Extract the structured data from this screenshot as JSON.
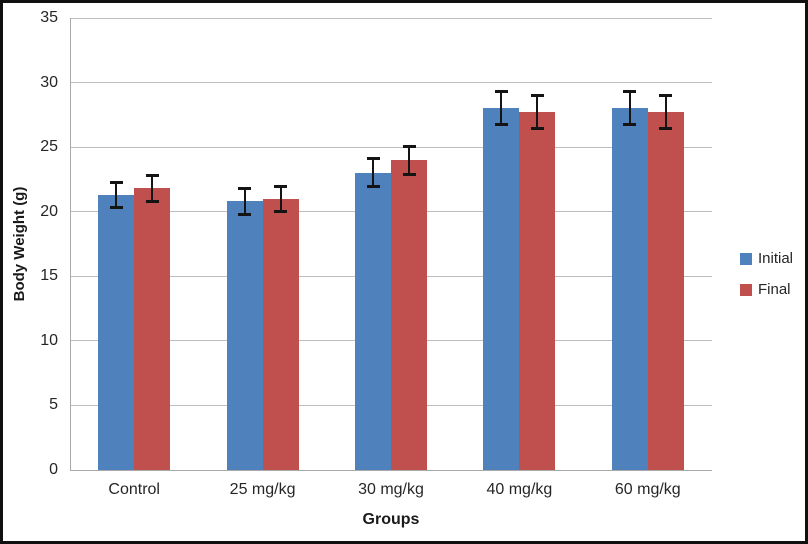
{
  "chart_data": {
    "type": "bar",
    "title": "",
    "categories": [
      "Control",
      "25 mg/kg",
      "30 mg/kg",
      "40 mg/kg",
      "60 mg/kg"
    ],
    "series": [
      {
        "name": "Initial",
        "color": "#4f81bd",
        "values": [
          21.3,
          20.8,
          23.0,
          28.0,
          28.0
        ],
        "errors": [
          1.1,
          1.1,
          1.2,
          1.4,
          1.4
        ]
      },
      {
        "name": "Final",
        "color": "#c0504d",
        "values": [
          21.8,
          21.0,
          24.0,
          27.7,
          27.7
        ],
        "errors": [
          1.1,
          1.1,
          1.2,
          1.4,
          1.4
        ]
      }
    ],
    "xlabel": "Groups",
    "ylabel": "Body Weight (g)",
    "ylim": [
      0,
      35
    ],
    "yticks": [
      0,
      5,
      10,
      15,
      20,
      25,
      30,
      35
    ],
    "grid": true,
    "error_bars": true,
    "legend_position": "right",
    "error_bar_color": "#141414",
    "gridline_color": "#bdbdbd",
    "background_color": "#ffffff"
  }
}
